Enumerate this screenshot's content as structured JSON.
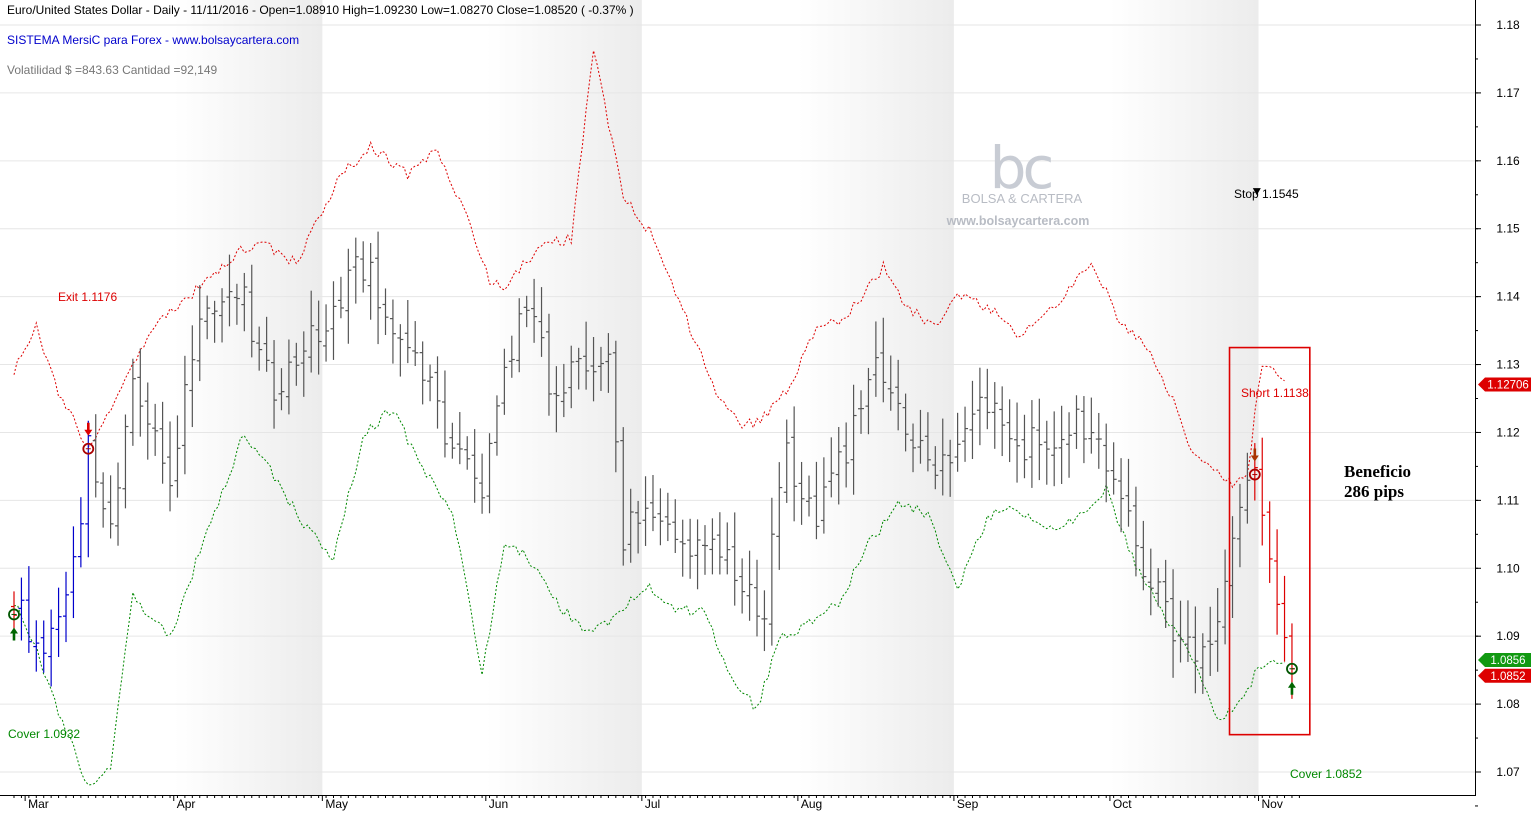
{
  "header": {
    "title": "Euro/United States Dollar - Daily - 11/11/2016 -   Open=1.08910   High=1.09230   Low=1.08270   Close=1.08520  ( -0.37% )",
    "system": "SISTEMA MersiC para Forex  -  www.bolsaycartera.com",
    "volatility": "Volatilidad $ =843.63  Cantidad =92,149"
  },
  "watermark": {
    "logo": "bc",
    "name": "BOLSA & CARTERA",
    "url": "www.bolsaycartera.com"
  },
  "annotations": {
    "exit": "Exit 1.1176",
    "stop": "Stop 1.1545",
    "short": "Short 1.1138",
    "cover_bottom": "Cover 1.0852",
    "cover_left": "Cover 1.0932",
    "profit_line1": "Beneficio",
    "profit_line2": "286 pips"
  },
  "price_tags": {
    "upper": "1.12706",
    "green": "1.0856",
    "red": "1.0852"
  },
  "colors": {
    "upper_band": "#dd0000",
    "lower_band": "#008800",
    "bars_neutral": "#555555",
    "bars_long": "#0000cc",
    "bars_short": "#dd0000",
    "box": "#dd0000"
  },
  "chart_data": {
    "type": "ohlc",
    "y_axis": {
      "range": [
        1.063,
        1.183
      ],
      "ticks": [
        "1.07",
        "1.08",
        "1.09",
        "1.10",
        "1.11",
        "1.12",
        "1.13",
        "1.14",
        "1.15",
        "1.16",
        "1.17",
        "1.18"
      ],
      "side": "right"
    },
    "x_axis": {
      "months": [
        "Mar",
        "Apr",
        "May",
        "Jun",
        "Jul",
        "Aug",
        "Sep",
        "Oct",
        "Nov"
      ]
    },
    "upper_band_keypoints": [
      [
        0,
        1.129
      ],
      [
        3,
        1.1355
      ],
      [
        6,
        1.126
      ],
      [
        10,
        1.1178
      ],
      [
        14,
        1.125
      ],
      [
        18,
        1.1345
      ],
      [
        24,
        1.1405
      ],
      [
        30,
        1.1465
      ],
      [
        33,
        1.148
      ],
      [
        38,
        1.145
      ],
      [
        44,
        1.158
      ],
      [
        48,
        1.162
      ],
      [
        53,
        1.158
      ],
      [
        57,
        1.1615
      ],
      [
        61,
        1.1515
      ],
      [
        64,
        1.1425
      ],
      [
        66,
        1.141
      ],
      [
        69,
        1.1455
      ],
      [
        72,
        1.148
      ],
      [
        75,
        1.1485
      ],
      [
        78,
        1.1765
      ],
      [
        82,
        1.1545
      ],
      [
        86,
        1.149
      ],
      [
        90,
        1.138
      ],
      [
        94,
        1.127
      ],
      [
        98,
        1.1205
      ],
      [
        101,
        1.1225
      ],
      [
        104,
        1.126
      ],
      [
        108,
        1.1355
      ],
      [
        111,
        1.1365
      ],
      [
        114,
        1.1395
      ],
      [
        117,
        1.1445
      ],
      [
        120,
        1.1385
      ],
      [
        124,
        1.1355
      ],
      [
        127,
        1.14
      ],
      [
        131,
        1.1385
      ],
      [
        135,
        1.1345
      ],
      [
        138,
        1.1365
      ],
      [
        141,
        1.1395
      ],
      [
        145,
        1.145
      ],
      [
        149,
        1.136
      ],
      [
        152,
        1.1335
      ],
      [
        156,
        1.125
      ],
      [
        158,
        1.1185
      ],
      [
        161,
        1.115
      ],
      [
        164,
        1.1125
      ],
      [
        166,
        1.114
      ],
      [
        168,
        1.1305
      ],
      [
        171,
        1.1275
      ]
    ],
    "lower_band_keypoints": [
      [
        0,
        1.095
      ],
      [
        3,
        1.088
      ],
      [
        6,
        1.079
      ],
      [
        10,
        1.068
      ],
      [
        13,
        1.0705
      ],
      [
        16,
        1.096
      ],
      [
        21,
        1.0895
      ],
      [
        25,
        1.1025
      ],
      [
        31,
        1.12
      ],
      [
        35,
        1.1135
      ],
      [
        39,
        1.1065
      ],
      [
        43,
        1.1015
      ],
      [
        47,
        1.1195
      ],
      [
        51,
        1.1235
      ],
      [
        55,
        1.1145
      ],
      [
        59,
        1.1085
      ],
      [
        63,
        1.0845
      ],
      [
        66,
        1.1035
      ],
      [
        69,
        1.102
      ],
      [
        73,
        1.095
      ],
      [
        77,
        1.0905
      ],
      [
        81,
        1.0925
      ],
      [
        85,
        1.0975
      ],
      [
        89,
        1.094
      ],
      [
        93,
        1.0935
      ],
      [
        97,
        1.0825
      ],
      [
        100,
        1.0795
      ],
      [
        103,
        1.0895
      ],
      [
        107,
        1.092
      ],
      [
        111,
        1.095
      ],
      [
        115,
        1.1035
      ],
      [
        119,
        1.1095
      ],
      [
        123,
        1.108
      ],
      [
        127,
        1.0965
      ],
      [
        131,
        1.1075
      ],
      [
        135,
        1.109
      ],
      [
        139,
        1.1055
      ],
      [
        143,
        1.107
      ],
      [
        147,
        1.1115
      ],
      [
        151,
        1.1005
      ],
      [
        155,
        1.093
      ],
      [
        159,
        1.0865
      ],
      [
        162,
        1.0775
      ],
      [
        165,
        1.0805
      ],
      [
        168,
        1.086
      ],
      [
        171,
        1.086
      ]
    ],
    "close_keypoints": [
      [
        0,
        1.095
      ],
      [
        4,
        1.088
      ],
      [
        8,
        1.099
      ],
      [
        10,
        1.1176
      ],
      [
        13,
        1.108
      ],
      [
        16,
        1.127
      ],
      [
        21,
        1.115
      ],
      [
        25,
        1.135
      ],
      [
        31,
        1.14
      ],
      [
        35,
        1.125
      ],
      [
        38,
        1.13
      ],
      [
        43,
        1.1375
      ],
      [
        47,
        1.145
      ],
      [
        51,
        1.135
      ],
      [
        55,
        1.128
      ],
      [
        59,
        1.118
      ],
      [
        63,
        1.113
      ],
      [
        66,
        1.13
      ],
      [
        69,
        1.138
      ],
      [
        73,
        1.125
      ],
      [
        77,
        1.13
      ],
      [
        80,
        1.1345
      ],
      [
        82,
        1.105
      ],
      [
        86,
        1.1085
      ],
      [
        90,
        1.1035
      ],
      [
        94,
        1.104
      ],
      [
        98,
        1.096
      ],
      [
        101,
        1.0955
      ],
      [
        104,
        1.117
      ],
      [
        108,
        1.108
      ],
      [
        112,
        1.1165
      ],
      [
        116,
        1.13
      ],
      [
        120,
        1.1225
      ],
      [
        124,
        1.1145
      ],
      [
        127,
        1.12
      ],
      [
        131,
        1.123
      ],
      [
        135,
        1.1175
      ],
      [
        139,
        1.1195
      ],
      [
        143,
        1.121
      ],
      [
        147,
        1.117
      ],
      [
        151,
        1.103
      ],
      [
        155,
        1.094
      ],
      [
        159,
        1.0865
      ],
      [
        162,
        1.093
      ],
      [
        165,
        1.108
      ],
      [
        167,
        1.1138
      ],
      [
        169,
        1.1005
      ],
      [
        171,
        1.089
      ],
      [
        172,
        1.0852
      ]
    ],
    "long_bars": {
      "from": 0,
      "to": 10
    },
    "short_bars": {
      "from": 167,
      "to": 172
    },
    "signals": [
      {
        "type": "long_entry",
        "bar": 0,
        "price": 1.0932
      },
      {
        "type": "exit",
        "bar": 10,
        "price": 1.1176
      },
      {
        "type": "short_entry",
        "bar": 167,
        "price": 1.1138
      },
      {
        "type": "cover",
        "bar": 172,
        "price": 1.0852
      }
    ],
    "stop_marker": {
      "bar": 167,
      "price": 1.1545
    },
    "trade_box": {
      "from_bar": 164,
      "to_bar": 174,
      "price_top": 1.1325,
      "price_bottom": 1.0755
    }
  }
}
